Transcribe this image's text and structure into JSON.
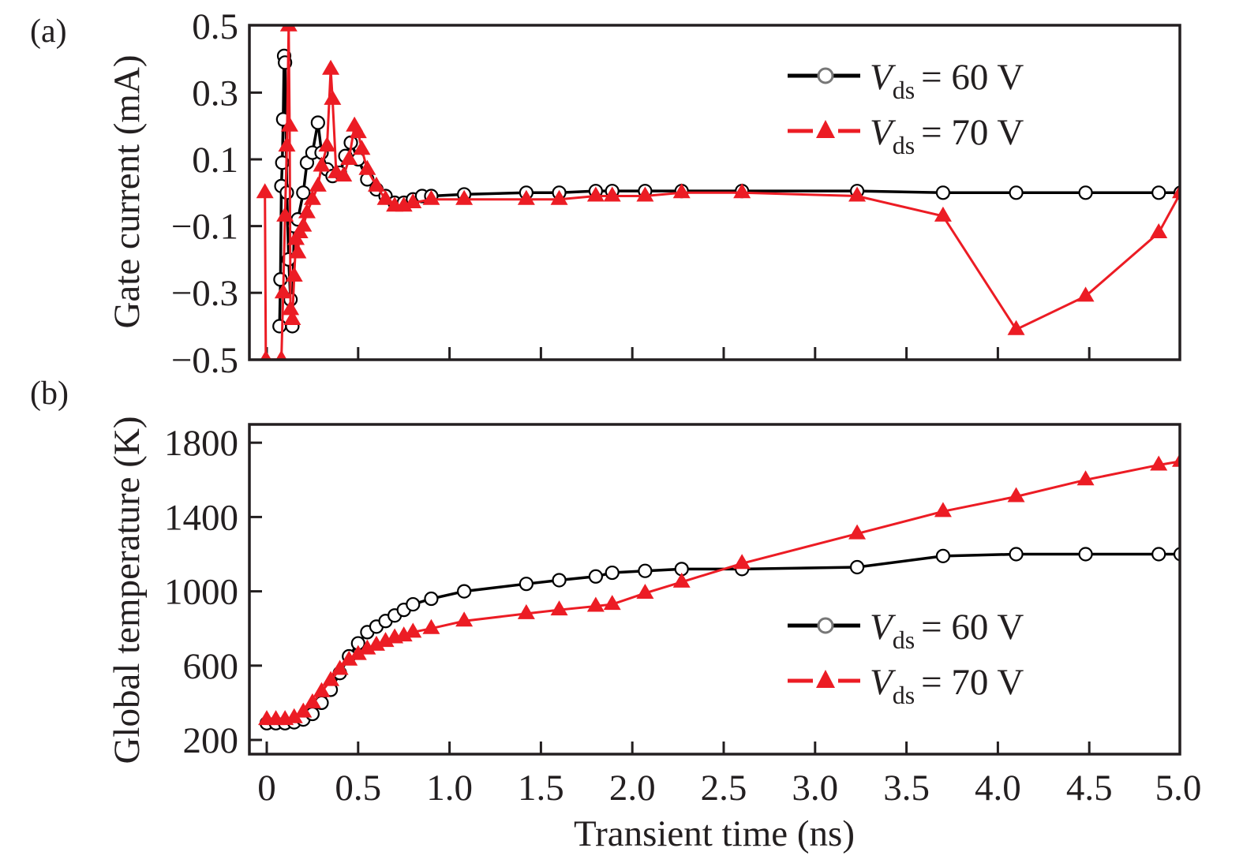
{
  "figure": {
    "panel_labels": [
      "(a)",
      "(b)"
    ],
    "x_axis_title": "Transient time (ns)"
  },
  "chart_data": [
    {
      "type": "line",
      "panel": "(a)",
      "title": "",
      "xlabel": "Transient time (ns)",
      "ylabel": "Gate current (mA)",
      "xlim": [
        -0.1,
        5.0
      ],
      "ylim": [
        -0.5,
        0.5
      ],
      "xticks": [
        0,
        0.5,
        1.0,
        1.5,
        2.0,
        2.5,
        3.0,
        3.5,
        4.0,
        4.5,
        5.0
      ],
      "yticks": [
        0.5,
        0.3,
        0.1,
        -0.1,
        -0.3,
        -0.5
      ],
      "ytick_labels": [
        "0.5",
        "0.3",
        "0.1",
        "−0.1",
        "−0.3",
        "−0.5"
      ],
      "grid": false,
      "legend_position": "top-right",
      "series": [
        {
          "name": "Vds = 60 V",
          "label_main": "V",
          "label_sub": "ds",
          "label_rest": "= 60 V",
          "color": "#000000",
          "marker": "open-circle",
          "x": [
            0.07,
            0.075,
            0.08,
            0.085,
            0.09,
            0.095,
            0.1,
            0.11,
            0.12,
            0.13,
            0.14,
            0.15,
            0.17,
            0.2,
            0.22,
            0.25,
            0.28,
            0.3,
            0.33,
            0.36,
            0.4,
            0.43,
            0.46,
            0.5,
            0.55,
            0.6,
            0.65,
            0.7,
            0.75,
            0.8,
            0.85,
            0.9,
            1.08,
            1.42,
            1.6,
            1.8,
            1.89,
            2.07,
            2.27,
            2.6,
            3.23,
            3.7,
            4.1,
            4.48,
            4.88,
            5.0
          ],
          "y": [
            -0.4,
            -0.26,
            0.02,
            0.09,
            0.22,
            0.41,
            0.39,
            0.0,
            -0.2,
            -0.32,
            -0.4,
            -0.1,
            -0.08,
            0.0,
            0.09,
            0.12,
            0.21,
            0.12,
            0.07,
            0.05,
            0.06,
            0.11,
            0.15,
            0.1,
            0.04,
            0.01,
            -0.01,
            -0.03,
            -0.03,
            -0.02,
            -0.01,
            -0.01,
            -0.005,
            0.0,
            0.0,
            0.005,
            0.005,
            0.005,
            0.005,
            0.005,
            0.005,
            0.0,
            0.0,
            0.0,
            0.0,
            0.0
          ]
        },
        {
          "name": "Vds = 70 V",
          "label_main": "V",
          "label_sub": "ds",
          "label_rest": "= 70 V",
          "color": "#ec1c24",
          "marker": "filled-triangle",
          "x": [
            -0.01,
            -0.005,
            0.08,
            0.09,
            0.1,
            0.11,
            0.12,
            0.125,
            0.13,
            0.14,
            0.15,
            0.16,
            0.17,
            0.18,
            0.2,
            0.22,
            0.25,
            0.28,
            0.3,
            0.33,
            0.35,
            0.36,
            0.38,
            0.42,
            0.45,
            0.48,
            0.5,
            0.52,
            0.55,
            0.6,
            0.65,
            0.7,
            0.75,
            0.8,
            0.9,
            1.08,
            1.42,
            1.6,
            1.8,
            1.89,
            2.07,
            2.27,
            2.6,
            3.23,
            3.7,
            4.1,
            4.48,
            4.88,
            5.0
          ],
          "y": [
            0.0,
            -0.5,
            -0.5,
            -0.3,
            -0.07,
            0.14,
            0.5,
            0.2,
            -0.35,
            -0.38,
            -0.25,
            -0.14,
            -0.18,
            -0.12,
            -0.1,
            -0.06,
            -0.02,
            0.02,
            0.08,
            0.14,
            0.37,
            0.28,
            0.06,
            0.05,
            0.1,
            0.2,
            0.18,
            0.13,
            0.07,
            0.02,
            -0.02,
            -0.04,
            -0.04,
            -0.03,
            -0.02,
            -0.02,
            -0.02,
            -0.02,
            -0.01,
            -0.01,
            -0.01,
            0.0,
            0.0,
            -0.01,
            -0.07,
            -0.41,
            -0.31,
            -0.12,
            0.0
          ]
        }
      ]
    },
    {
      "type": "line",
      "panel": "(b)",
      "title": "",
      "xlabel": "Transient time (ns)",
      "ylabel": "Global temperature (K)",
      "xlim": [
        -0.1,
        5.0
      ],
      "ylim": [
        100,
        1900
      ],
      "xticks": [
        0,
        0.5,
        1.0,
        1.5,
        2.0,
        2.5,
        3.0,
        3.5,
        4.0,
        4.5,
        5.0
      ],
      "xtick_labels": [
        "0",
        "0.5",
        "1.0",
        "1.5",
        "2.0",
        "2.5",
        "3.0",
        "3.5",
        "4.0",
        "4.5",
        "5.0"
      ],
      "yticks": [
        1800,
        1400,
        1000,
        600,
        200
      ],
      "ytick_labels": [
        "1800",
        "1400",
        "1000",
        "600",
        "200"
      ],
      "grid": false,
      "legend_position": "bottom-right",
      "series": [
        {
          "name": "Vds = 60 V",
          "label_main": "V",
          "label_sub": "ds",
          "label_rest": "= 60 V",
          "color": "#000000",
          "marker": "open-circle",
          "x": [
            0.0,
            0.05,
            0.1,
            0.15,
            0.2,
            0.25,
            0.3,
            0.35,
            0.4,
            0.45,
            0.5,
            0.55,
            0.6,
            0.65,
            0.7,
            0.75,
            0.8,
            0.9,
            1.08,
            1.42,
            1.6,
            1.8,
            1.89,
            2.07,
            2.27,
            2.6,
            3.23,
            3.7,
            4.1,
            4.48,
            4.88,
            5.0
          ],
          "y": [
            290,
            290,
            290,
            295,
            310,
            340,
            400,
            470,
            560,
            650,
            720,
            780,
            810,
            840,
            870,
            900,
            930,
            960,
            1000,
            1040,
            1060,
            1080,
            1100,
            1110,
            1120,
            1120,
            1130,
            1190,
            1200,
            1200,
            1200,
            1200
          ]
        },
        {
          "name": "Vds = 70 V",
          "label_main": "V",
          "label_sub": "ds",
          "label_rest": "= 70 V",
          "color": "#ec1c24",
          "marker": "filled-triangle",
          "x": [
            0.0,
            0.05,
            0.1,
            0.15,
            0.2,
            0.25,
            0.3,
            0.35,
            0.4,
            0.45,
            0.5,
            0.55,
            0.6,
            0.65,
            0.7,
            0.75,
            0.8,
            0.9,
            1.08,
            1.42,
            1.6,
            1.8,
            1.89,
            2.07,
            2.27,
            2.6,
            3.23,
            3.7,
            4.1,
            4.48,
            4.88,
            5.0
          ],
          "y": [
            310,
            310,
            310,
            320,
            350,
            400,
            460,
            520,
            580,
            630,
            660,
            690,
            710,
            730,
            750,
            760,
            780,
            800,
            840,
            880,
            900,
            920,
            930,
            990,
            1050,
            1150,
            1310,
            1430,
            1510,
            1600,
            1680,
            1700
          ]
        }
      ]
    }
  ]
}
